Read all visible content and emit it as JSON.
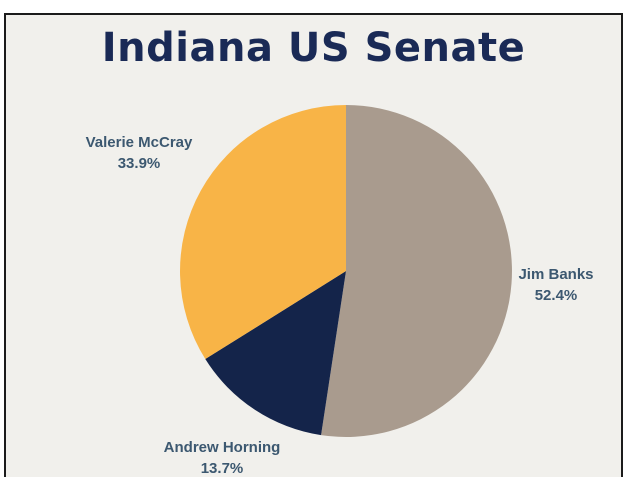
{
  "chart_data": {
    "type": "pie",
    "title": "Indiana US Senate",
    "categories": [
      "Jim Banks",
      "Andrew Horning",
      "Valerie McCray"
    ],
    "values": [
      52.4,
      13.7,
      33.9
    ],
    "value_labels": [
      "52.4%",
      "13.7%",
      "33.9%"
    ],
    "colors": [
      "#a99b8e",
      "#14244a",
      "#f8b447"
    ],
    "start_angle": "12 o'clock",
    "direction": "clockwise"
  },
  "style": {
    "title_color": "#1a2a56",
    "label_color": "#3c5870",
    "background": "#f1f0ec"
  }
}
